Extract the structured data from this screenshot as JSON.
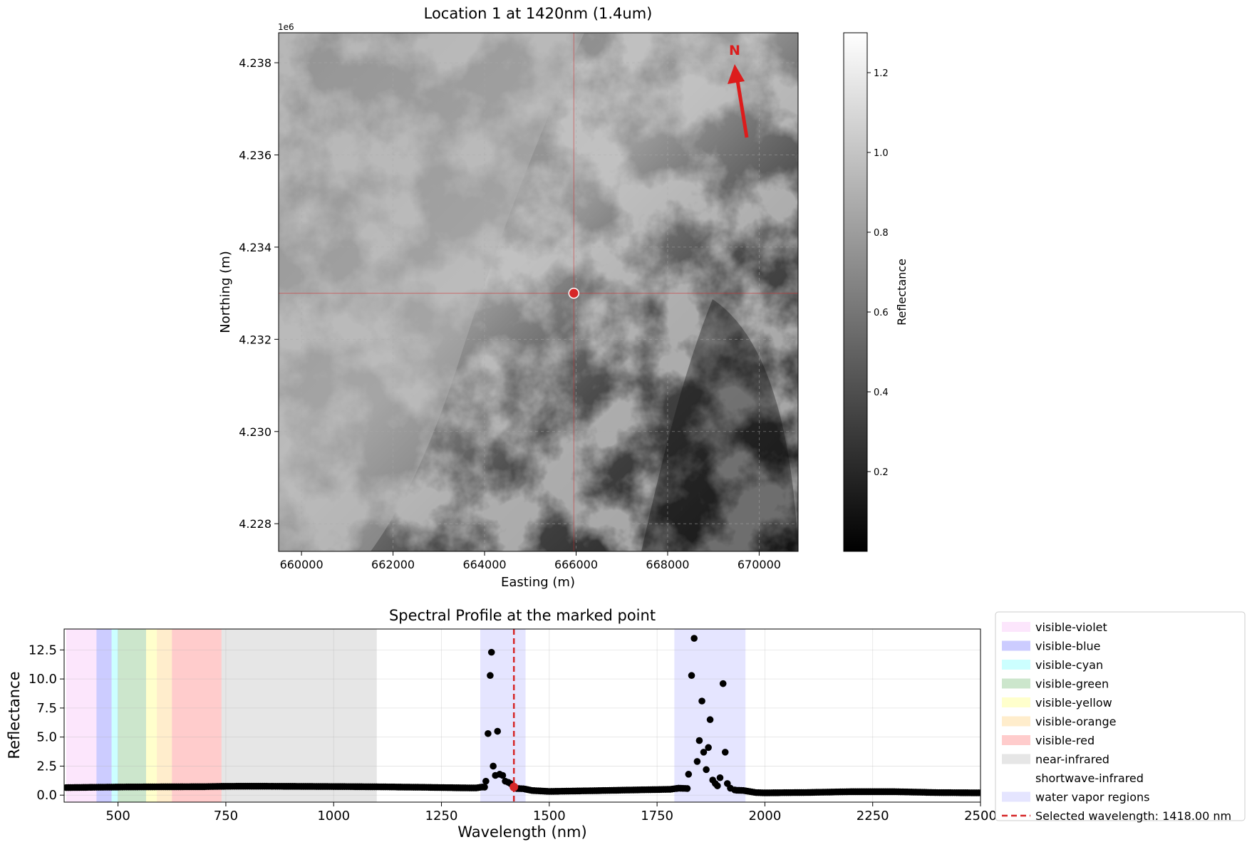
{
  "map_panel": {
    "title": "Location 1 at 1420nm (1.4um)",
    "xlabel": "Easting (m)",
    "ylabel": "Northing (m)",
    "y_offset_label": "1e6",
    "x_ticks": [
      {
        "value": 660000,
        "label": "660000"
      },
      {
        "value": 662000,
        "label": "662000"
      },
      {
        "value": 664000,
        "label": "664000"
      },
      {
        "value": 666000,
        "label": "666000"
      },
      {
        "value": 668000,
        "label": "668000"
      },
      {
        "value": 670000,
        "label": "670000"
      }
    ],
    "y_ticks": [
      {
        "value": 4228000,
        "label": "4.228"
      },
      {
        "value": 4230000,
        "label": "4.230"
      },
      {
        "value": 4232000,
        "label": "4.232"
      },
      {
        "value": 4234000,
        "label": "4.234"
      },
      {
        "value": 4236000,
        "label": "4.236"
      },
      {
        "value": 4238000,
        "label": "4.238"
      }
    ],
    "xlim": [
      659500,
      670850
    ],
    "ylim": [
      4227400,
      4238650
    ],
    "grid": true,
    "marked_point": {
      "easting": 665950,
      "northing": 4233000
    },
    "north_arrow": {
      "label": "N",
      "color": "#dd1c1c"
    },
    "image_colormap": "gray",
    "colorbar": {
      "label": "Reflectance",
      "range": [
        0.0,
        1.3
      ],
      "ticks": [
        {
          "value": 0.2,
          "label": "0.2"
        },
        {
          "value": 0.4,
          "label": "0.4"
        },
        {
          "value": 0.6,
          "label": "0.6"
        },
        {
          "value": 0.8,
          "label": "0.8"
        },
        {
          "value": 1.0,
          "label": "1.0"
        },
        {
          "value": 1.2,
          "label": "1.2"
        }
      ]
    }
  },
  "chart_data": {
    "type": "scatter",
    "title": "Spectral Profile at the marked point",
    "xlabel": "Wavelength (nm)",
    "ylabel": "Reflectance",
    "xlim": [
      375,
      2500
    ],
    "ylim": [
      -0.6,
      14.3
    ],
    "grid": true,
    "x_ticks": [
      {
        "value": 500,
        "label": "500"
      },
      {
        "value": 750,
        "label": "750"
      },
      {
        "value": 1000,
        "label": "1000"
      },
      {
        "value": 1250,
        "label": "1250"
      },
      {
        "value": 1500,
        "label": "1500"
      },
      {
        "value": 1750,
        "label": "1750"
      },
      {
        "value": 2000,
        "label": "2000"
      },
      {
        "value": 2250,
        "label": "2250"
      },
      {
        "value": 2500,
        "label": "2500"
      }
    ],
    "y_ticks": [
      {
        "value": 0.0,
        "label": "0.0"
      },
      {
        "value": 2.5,
        "label": "2.5"
      },
      {
        "value": 5.0,
        "label": "5.0"
      },
      {
        "value": 7.5,
        "label": "7.5"
      },
      {
        "value": 10.0,
        "label": "10.0"
      },
      {
        "value": 12.5,
        "label": "12.5"
      }
    ],
    "regions": [
      {
        "name": "visible-violet",
        "start": 380,
        "end": 450,
        "color": "#ee82ee",
        "alpha": 0.2
      },
      {
        "name": "visible-blue",
        "start": 450,
        "end": 485,
        "color": "#0000ff",
        "alpha": 0.2
      },
      {
        "name": "visible-cyan",
        "start": 485,
        "end": 500,
        "color": "#00ffff",
        "alpha": 0.2
      },
      {
        "name": "visible-green",
        "start": 500,
        "end": 565,
        "color": "#008000",
        "alpha": 0.2
      },
      {
        "name": "visible-yellow",
        "start": 565,
        "end": 590,
        "color": "#ffff00",
        "alpha": 0.2
      },
      {
        "name": "visible-orange",
        "start": 590,
        "end": 625,
        "color": "#ffa500",
        "alpha": 0.2
      },
      {
        "name": "visible-red",
        "start": 625,
        "end": 740,
        "color": "#ff0000",
        "alpha": 0.2
      },
      {
        "name": "near-infrared",
        "start": 740,
        "end": 1100,
        "color": "#808080",
        "alpha": 0.2
      },
      {
        "name": "shortwave-infrared",
        "start": 1100,
        "end": 2500,
        "color": "#ffffff",
        "alpha": 0.2
      },
      {
        "name": "water vapor regions",
        "start": 1340,
        "end": 1445,
        "color": "#0000ff",
        "alpha": 0.1,
        "second_start": 1790,
        "second_end": 1955
      }
    ],
    "selected_wavelength": {
      "value": 1418.0,
      "reflectance": 0.7,
      "label": "Selected wavelength: 1418.00 nm",
      "color": "#d62728"
    },
    "baseline": [
      [
        380,
        0.65
      ],
      [
        450,
        0.68
      ],
      [
        500,
        0.7
      ],
      [
        600,
        0.72
      ],
      [
        700,
        0.73
      ],
      [
        740,
        0.76
      ],
      [
        800,
        0.77
      ],
      [
        900,
        0.76
      ],
      [
        1000,
        0.74
      ],
      [
        1100,
        0.72
      ],
      [
        1200,
        0.68
      ],
      [
        1300,
        0.63
      ],
      [
        1330,
        0.62
      ],
      [
        1345,
        0.7
      ],
      [
        1440,
        0.55
      ],
      [
        1460,
        0.4
      ],
      [
        1500,
        0.32
      ],
      [
        1600,
        0.38
      ],
      [
        1700,
        0.45
      ],
      [
        1780,
        0.5
      ],
      [
        1800,
        0.6
      ],
      [
        1950,
        0.4
      ],
      [
        1980,
        0.22
      ],
      [
        2000,
        0.2
      ],
      [
        2100,
        0.23
      ],
      [
        2200,
        0.3
      ],
      [
        2300,
        0.3
      ],
      [
        2400,
        0.22
      ],
      [
        2500,
        0.2
      ]
    ],
    "outliers": [
      [
        1353,
        1.2
      ],
      [
        1358,
        5.3
      ],
      [
        1363,
        10.3
      ],
      [
        1366,
        12.3
      ],
      [
        1370,
        2.5
      ],
      [
        1375,
        1.7
      ],
      [
        1380,
        5.5
      ],
      [
        1385,
        1.8
      ],
      [
        1392,
        1.7
      ],
      [
        1398,
        1.2
      ],
      [
        1405,
        1.1
      ],
      [
        1410,
        1.0
      ],
      [
        1418,
        0.7
      ],
      [
        1823,
        1.8
      ],
      [
        1830,
        10.3
      ],
      [
        1836,
        13.5
      ],
      [
        1843,
        2.9
      ],
      [
        1848,
        4.7
      ],
      [
        1854,
        8.1
      ],
      [
        1858,
        3.7
      ],
      [
        1864,
        2.2
      ],
      [
        1869,
        4.1
      ],
      [
        1873,
        6.5
      ],
      [
        1879,
        1.3
      ],
      [
        1885,
        1.0
      ],
      [
        1890,
        0.8
      ],
      [
        1896,
        1.5
      ],
      [
        1903,
        9.6
      ],
      [
        1908,
        3.7
      ],
      [
        1913,
        1.0
      ],
      [
        1920,
        0.6
      ],
      [
        1930,
        0.45
      ]
    ]
  }
}
